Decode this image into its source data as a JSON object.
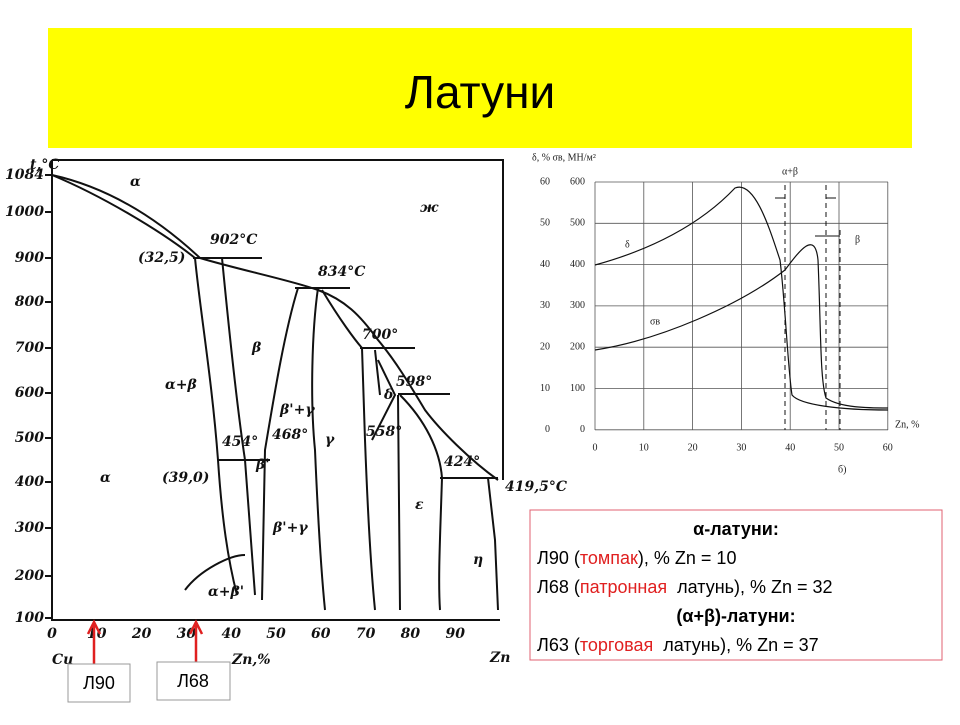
{
  "header": {
    "title": "Латуни"
  },
  "phase_diagram": {
    "y_label": "t,°C",
    "y_ticks": [
      "1084",
      "1000",
      "900",
      "800",
      "700",
      "600",
      "500",
      "400",
      "300",
      "200",
      "100"
    ],
    "x_ticks": [
      "0",
      "10",
      "20",
      "30",
      "40",
      "50",
      "60",
      "70",
      "80",
      "90"
    ],
    "x_left": "Cu",
    "x_label": "Zn,%",
    "x_right": "Zn",
    "labels": [
      "α",
      "ж",
      "(32,5)",
      "902°C",
      "834°C",
      "β",
      "α+β",
      "β'+γ",
      "468°",
      "γ",
      "700°",
      "598°",
      "δ",
      "558°",
      "454°",
      "β'",
      "(39,0)",
      "α",
      "424°",
      "419,5°C",
      "ε",
      "η",
      "β'+γ",
      "α+β'"
    ]
  },
  "property_chart": {
    "y_label": "δ, %   σв, МН/м²",
    "delta_ticks": [
      "60",
      "50",
      "40",
      "30",
      "20",
      "10",
      "0"
    ],
    "sigma_ticks": [
      "600",
      "500",
      "400",
      "300",
      "200",
      "100",
      "0"
    ],
    "x_ticks": [
      "0",
      "10",
      "20",
      "30",
      "40",
      "50",
      "60"
    ],
    "x_label": "Zn, %",
    "caption": "б)",
    "curve_labels": [
      "α+β",
      "β",
      "δ",
      "σв"
    ]
  },
  "info": {
    "lines": [
      {
        "parts": [
          "α-латуни:"
        ]
      },
      {
        "parts": [
          "Л90 (",
          "томпак",
          "), % Zn = 10"
        ]
      },
      {
        "parts": [
          "Л68 (",
          "патронная",
          "  латунь), % Zn = 32"
        ]
      },
      {
        "parts": [
          "(α+β)-латуни:"
        ]
      },
      {
        "parts": [
          "Л63 (",
          "торговая",
          "  латунь), % Zn = 37"
        ]
      }
    ]
  },
  "markers": [
    "Л90",
    "Л68"
  ]
}
